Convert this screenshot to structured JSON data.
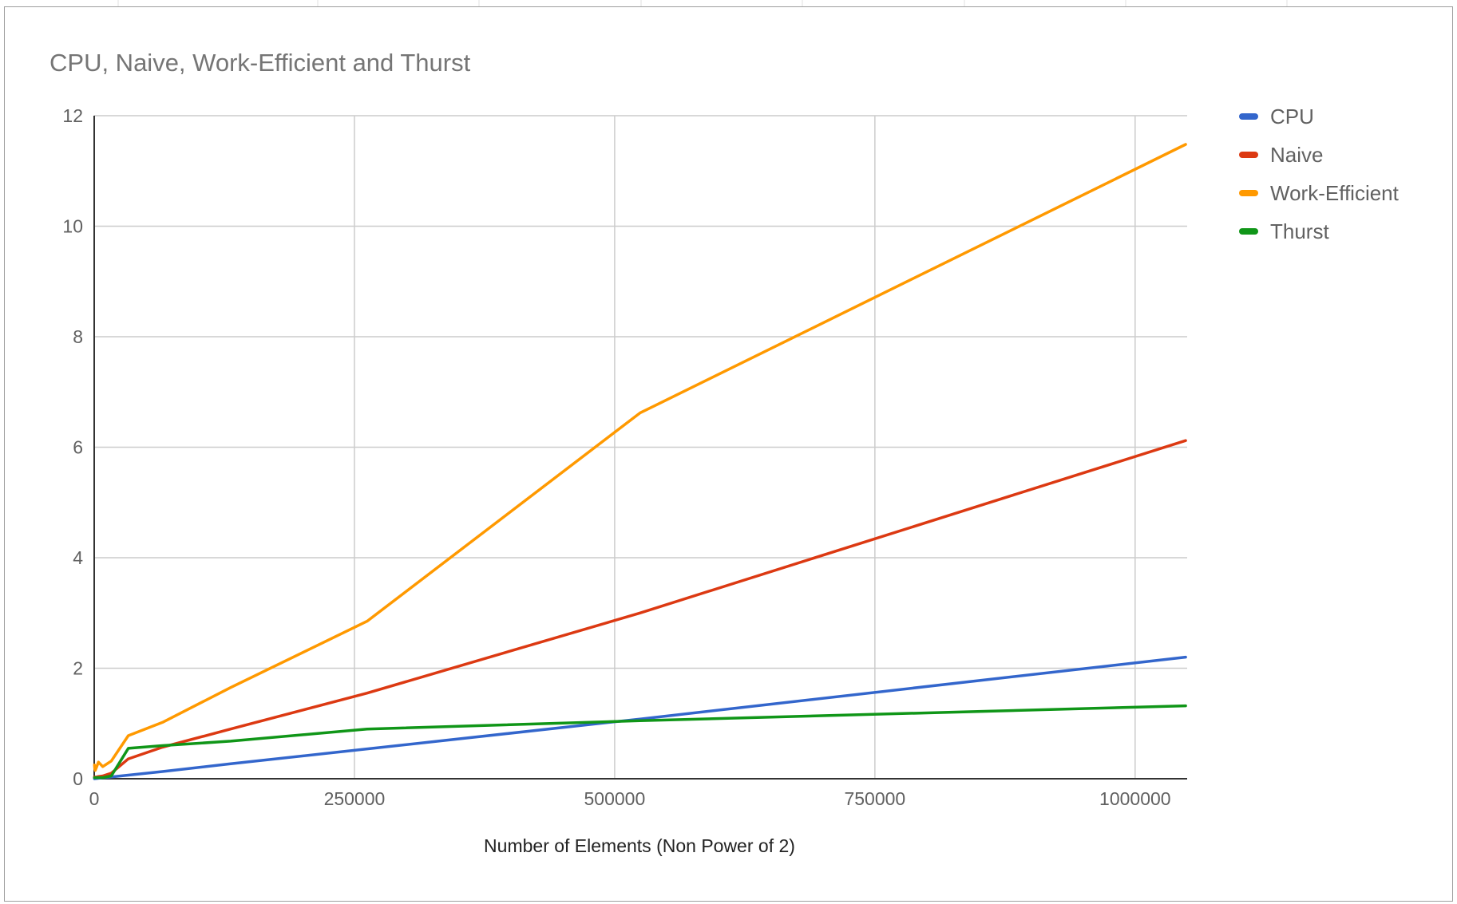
{
  "chart_data": {
    "type": "line",
    "title": "CPU, Naive, Work-Efficient and Thurst",
    "xlabel": "Number of Elements (Non Power of 2)",
    "ylabel": "",
    "xlim": [
      0,
      1050000
    ],
    "ylim": [
      0,
      12
    ],
    "x_ticks": [
      0,
      250000,
      500000,
      750000,
      1000000
    ],
    "x_tick_labels": [
      "0",
      "250000",
      "500000",
      "750000",
      "1000000"
    ],
    "y_ticks": [
      0,
      2,
      4,
      6,
      8,
      10,
      12
    ],
    "y_tick_labels": [
      "0",
      "2",
      "4",
      "6",
      "8",
      "10",
      "12"
    ],
    "grid": true,
    "legend_position": "right",
    "x": [
      253,
      509,
      1021,
      2045,
      4093,
      8189,
      16381,
      32765,
      65533,
      131069,
      262141,
      524285,
      1048573
    ],
    "series": [
      {
        "name": "CPU",
        "color": "#3366cc",
        "values": [
          0.0005,
          0.001,
          0.002,
          0.004,
          0.008,
          0.016,
          0.032,
          0.065,
          0.13,
          0.27,
          0.54,
          1.08,
          2.2
        ]
      },
      {
        "name": "Naive",
        "color": "#dc3912",
        "values": [
          0.03,
          0.03,
          0.03,
          0.03,
          0.04,
          0.05,
          0.1,
          0.36,
          0.57,
          0.9,
          1.55,
          3.0,
          6.12
        ]
      },
      {
        "name": "Work-Efficient",
        "color": "#ff9900",
        "values": [
          0.25,
          0.18,
          0.15,
          0.2,
          0.3,
          0.22,
          0.32,
          0.78,
          1.02,
          1.65,
          2.85,
          6.62,
          11.48
        ]
      },
      {
        "name": "Thurst",
        "color": "#109618",
        "values": [
          0.02,
          0.02,
          0.02,
          0.02,
          0.02,
          0.02,
          0.05,
          0.55,
          0.6,
          0.68,
          0.9,
          1.05,
          1.32
        ]
      }
    ]
  }
}
